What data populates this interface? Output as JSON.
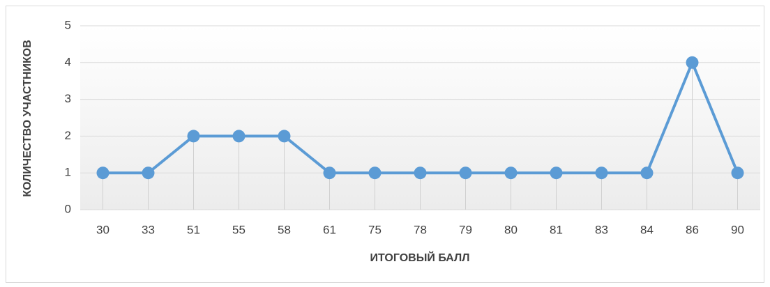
{
  "chart_data": {
    "type": "line",
    "x_label": "ИТОГОВЫЙ БАЛЛ",
    "y_label": "КОЛИЧЕСТВО УЧАСТНИКОВ",
    "categories": [
      "30",
      "33",
      "51",
      "55",
      "58",
      "61",
      "75",
      "78",
      "79",
      "80",
      "81",
      "83",
      "84",
      "86",
      "90"
    ],
    "values": [
      1,
      1,
      2,
      2,
      2,
      1,
      1,
      1,
      1,
      1,
      1,
      1,
      1,
      4,
      1
    ],
    "color": "#5b9bd5",
    "ylim": [
      0,
      5
    ],
    "yticks": [
      0,
      1,
      2,
      3,
      4,
      5
    ],
    "grid": true
  }
}
